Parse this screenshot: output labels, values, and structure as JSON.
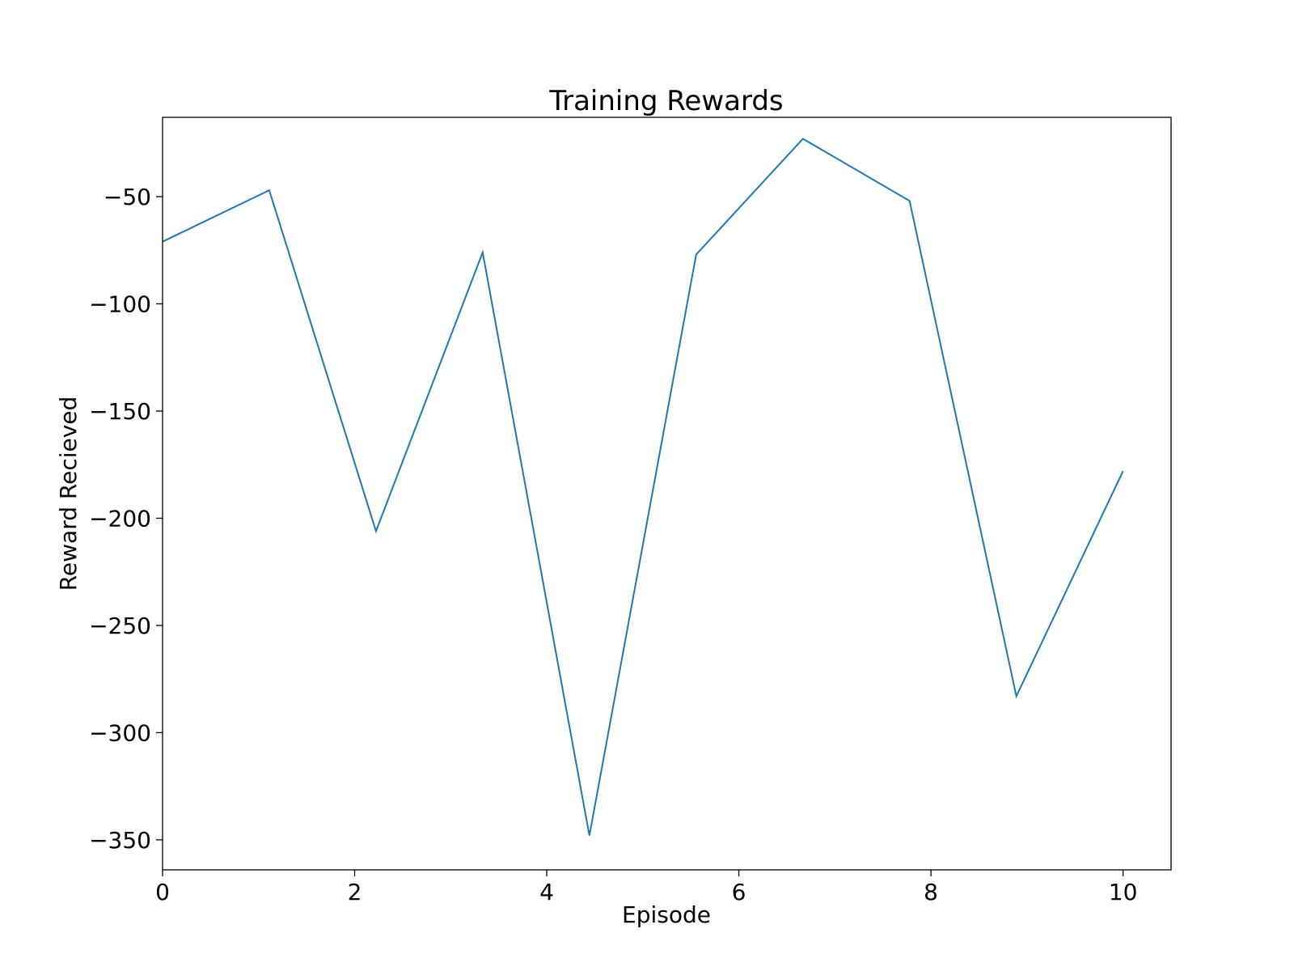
{
  "chart_data": {
    "type": "line",
    "title": "Training Rewards",
    "xlabel": "Episode",
    "ylabel": "Reward Recieved",
    "xlim": [
      0,
      10.5
    ],
    "ylim": [
      -364,
      -13
    ],
    "xticks": [
      0,
      2,
      4,
      6,
      8,
      10
    ],
    "yticks": [
      -50,
      -100,
      -150,
      -200,
      -250,
      -300,
      -350
    ],
    "grid": false,
    "series": [
      {
        "color": "#1f77b4",
        "x": [
          0,
          1.111,
          2.222,
          3.333,
          4.444,
          5.556,
          6.667,
          7.778,
          8.889,
          10
        ],
        "y": [
          -71,
          -47,
          -206,
          -76,
          -348,
          -77,
          -23,
          -52,
          -283,
          -178
        ]
      }
    ]
  }
}
